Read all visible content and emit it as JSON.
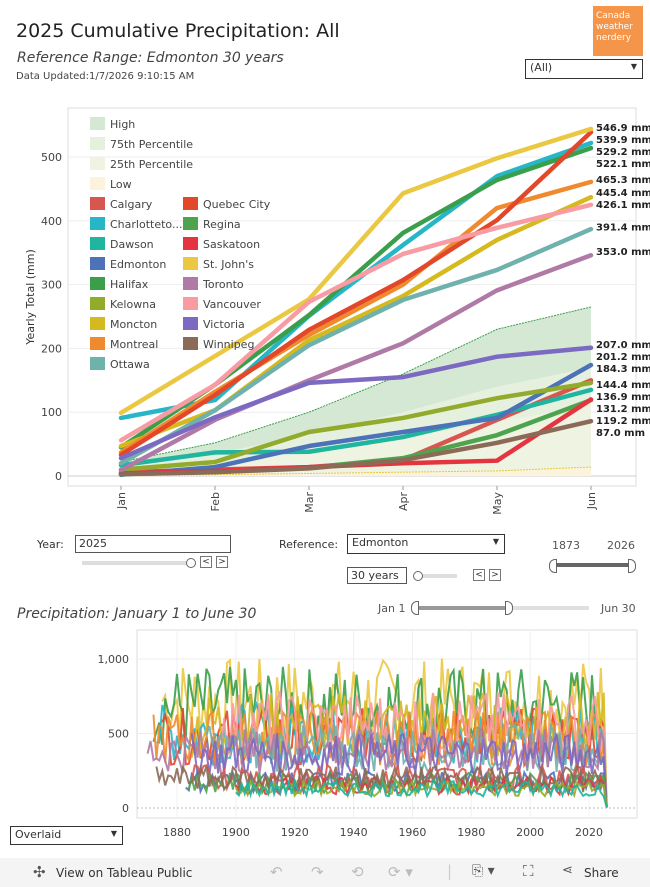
{
  "header": {
    "title": "2025 Cumulative Precipitation: All",
    "subtitle": "Reference Range: Edmonton 30 years",
    "updated": "Data Updated:1/7/2026 9:10:15 AM",
    "logo_text": "Canada weather nerdery",
    "city_filter": "(All)"
  },
  "colors": {
    "logo": "#f4954a",
    "high_band": "#d5e8d4",
    "band_75": "#e8f1dd",
    "band_25": "#f2f5e4",
    "low_band": "#fbf3dc"
  },
  "chart_data": [
    {
      "type": "line",
      "title": "",
      "ylabel": "Yearly Total (mm)",
      "ylim": [
        0,
        560
      ],
      "yticks": [
        0,
        100,
        200,
        300,
        400,
        500
      ],
      "categories": [
        "Jan",
        "Feb",
        "Mar",
        "Apr",
        "May",
        "Jun"
      ],
      "grid": true,
      "legend": "top-left",
      "bands": [
        {
          "name": "High",
          "color": "#d5e8d4",
          "line": "#3a9e4a",
          "values": [
            22,
            52,
            100,
            160,
            230,
            265
          ]
        },
        {
          "name": "75th Percentile",
          "color": "#e6f0df",
          "values": [
            14,
            35,
            65,
            100,
            140,
            170
          ]
        },
        {
          "name": "25th Percentile",
          "color": "#eef3e2",
          "values": [
            8,
            20,
            40,
            60,
            85,
            110
          ]
        },
        {
          "name": "Low",
          "color": "#fbf3dc",
          "line": "#e8c840",
          "values": [
            0,
            2,
            4,
            6,
            8,
            14
          ]
        }
      ],
      "series": [
        {
          "name": "Calgary",
          "color": "#d95550",
          "values": [
            6,
            10,
            14,
            25,
            88,
            150
          ]
        },
        {
          "name": "Charlottetown",
          "legend_label": "Charlotteto...",
          "color": "#27b5c8",
          "values": [
            91,
            119,
            251,
            362,
            470,
            522
          ]
        },
        {
          "name": "Dawson",
          "color": "#1fb59e",
          "values": [
            17,
            37,
            38,
            61,
            96,
            135
          ]
        },
        {
          "name": "Edmonton",
          "color": "#4c72b8",
          "values": [
            2,
            14,
            47,
            69,
            91,
            174
          ]
        },
        {
          "name": "Halifax",
          "color": "#3a9e4a",
          "values": [
            45,
            143,
            252,
            381,
            464,
            514
          ]
        },
        {
          "name": "Kelowna",
          "color": "#93ab2c",
          "values": [
            10,
            22,
            69,
            91,
            122,
            146
          ]
        },
        {
          "name": "Moncton",
          "color": "#d6b81f",
          "values": [
            47,
            103,
            213,
            282,
            370,
            437
          ]
        },
        {
          "name": "Montreal",
          "color": "#f08a2e",
          "values": [
            37,
            132,
            221,
            300,
            420,
            461
          ]
        },
        {
          "name": "Ottawa",
          "color": "#6fb1ac",
          "values": [
            20,
            103,
            205,
            276,
            323,
            387
          ]
        },
        {
          "name": "Quebec City",
          "color": "#e2472a",
          "values": [
            33,
            127,
            229,
            307,
            401,
            539
          ]
        },
        {
          "name": "Regina",
          "color": "#4ea44e",
          "values": [
            3,
            6,
            13,
            28,
            64,
            119
          ]
        },
        {
          "name": "Saskatoon",
          "color": "#e3343f",
          "values": [
            4,
            8,
            14,
            20,
            24,
            120
          ]
        },
        {
          "name": "St. John's",
          "color": "#ebc842",
          "values": [
            99,
            188,
            277,
            443,
            498,
            544
          ]
        },
        {
          "name": "Toronto",
          "color": "#b07aa6",
          "values": [
            9,
            88,
            150,
            208,
            291,
            346
          ]
        },
        {
          "name": "Vancouver",
          "color": "#f89ba3",
          "values": [
            56,
            143,
            273,
            348,
            389,
            425
          ]
        },
        {
          "name": "Victoria",
          "color": "#7b69c2",
          "values": [
            28,
            92,
            146,
            155,
            187,
            201
          ]
        },
        {
          "name": "Winnipeg",
          "color": "#8c6a58",
          "values": [
            3,
            6,
            12,
            25,
            52,
            86
          ]
        }
      ],
      "end_labels": [
        "546.9 mm",
        "539.9 mm",
        "529.2 mm",
        "522.1 mm",
        "465.3 mm",
        "445.4 mm",
        "426.1 mm",
        "391.4 mm",
        "353.0 mm",
        "207.0 mm",
        "201.2 mm",
        "184.3 mm",
        "144.4 mm",
        "136.9 mm",
        "131.2 mm",
        "119.2 mm",
        "87.0 mm"
      ],
      "end_label_values": [
        546.9,
        539.9,
        529.2,
        522.1,
        465.3,
        445.4,
        426.1,
        391.4,
        353.0,
        207.0,
        201.2,
        184.3,
        144.4,
        136.9,
        131.2,
        119.2,
        87.0
      ]
    },
    {
      "type": "line",
      "title": "Precipitation: January 1 to June 30",
      "xlim": [
        1866,
        2030
      ],
      "ylim": [
        -50,
        1080
      ],
      "xticks": [
        1880,
        1900,
        1920,
        1940,
        1960,
        1980,
        2000,
        2020
      ],
      "yticks": [
        0,
        500,
        1000
      ],
      "ytick_labels": [
        "0",
        "500",
        "1,000"
      ],
      "series_summary": [
        {
          "name": "St. John's",
          "start": 1875,
          "mean_mm": 720
        },
        {
          "name": "Halifax",
          "start": 1872,
          "mean_mm": 680
        },
        {
          "name": "Charlottetown",
          "start": 1873,
          "mean_mm": 500
        },
        {
          "name": "Quebec City",
          "start": 1875,
          "mean_mm": 480
        },
        {
          "name": "Moncton",
          "start": 1885,
          "mean_mm": 560
        },
        {
          "name": "Montreal",
          "start": 1872,
          "mean_mm": 470
        },
        {
          "name": "Vancouver",
          "start": 1895,
          "mean_mm": 560
        },
        {
          "name": "Ottawa",
          "start": 1890,
          "mean_mm": 400
        },
        {
          "name": "Toronto",
          "start": 1870,
          "mean_mm": 380
        },
        {
          "name": "Victoria",
          "start": 1885,
          "mean_mm": 360
        },
        {
          "name": "Edmonton",
          "start": 1883,
          "mean_mm": 180
        },
        {
          "name": "Calgary",
          "start": 1885,
          "mean_mm": 210
        },
        {
          "name": "Regina",
          "start": 1884,
          "mean_mm": 170
        },
        {
          "name": "Saskatoon",
          "start": 1900,
          "mean_mm": 150
        },
        {
          "name": "Winnipeg",
          "start": 1873,
          "mean_mm": 200
        },
        {
          "name": "Kelowna",
          "start": 1900,
          "mean_mm": 130
        },
        {
          "name": "Dawson",
          "start": 1900,
          "mean_mm": 130
        }
      ]
    }
  ],
  "controls": {
    "year_label": "Year:",
    "year_value": "2025",
    "year_slider": 1.0,
    "reference_label": "Reference:",
    "reference_value": "Edmonton",
    "window_value": "30 years",
    "window_slider": 0.0,
    "range_start": "1873",
    "range_end": "2026",
    "date_start": "Jan 1",
    "date_end": "Jun 30",
    "date_slider_end": 0.5,
    "view_mode": "Overlaid",
    "prev": "<",
    "next": ">"
  },
  "footer": {
    "view_label": "View on Tableau Public",
    "share_label": "Share"
  }
}
